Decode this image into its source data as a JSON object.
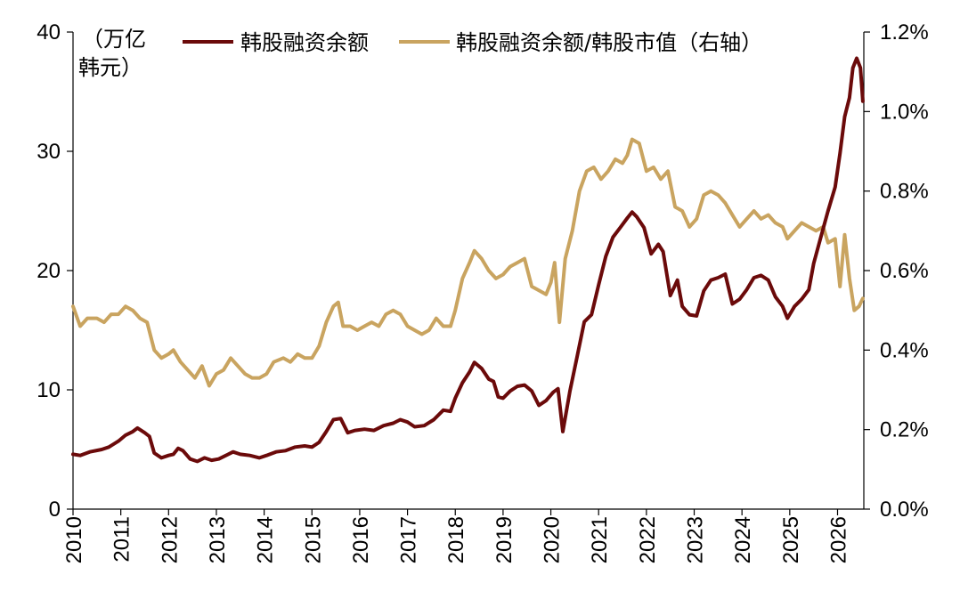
{
  "chart_data": {
    "type": "line",
    "left_unit_line1": "（万亿",
    "left_unit_line2": "韩元）",
    "legend_position": "top",
    "y_left": {
      "min": 0,
      "max": 40,
      "ticks": [
        "0",
        "10",
        "20",
        "30",
        "40"
      ]
    },
    "y_right": {
      "min": 0,
      "max": 1.2,
      "ticks": [
        "0.0%",
        "0.2%",
        "0.4%",
        "0.6%",
        "0.8%",
        "1.0%",
        "1.2%"
      ]
    },
    "x_range": [
      2010,
      2026.55
    ],
    "x_ticks": [
      "2010",
      "2011",
      "2012",
      "2013",
      "2014",
      "2015",
      "2016",
      "2017",
      "2018",
      "2019",
      "2020",
      "2021",
      "2022",
      "2023",
      "2024",
      "2025",
      "2026"
    ],
    "grid": false,
    "series": [
      {
        "name": "韩股融资余额",
        "axis": "left",
        "color": "#6b0a0a",
        "points": [
          [
            2010.0,
            4.6
          ],
          [
            2010.15,
            4.5
          ],
          [
            2010.35,
            4.8
          ],
          [
            2010.6,
            5.0
          ],
          [
            2010.75,
            5.2
          ],
          [
            2010.95,
            5.7
          ],
          [
            2011.1,
            6.2
          ],
          [
            2011.25,
            6.5
          ],
          [
            2011.35,
            6.8
          ],
          [
            2011.5,
            6.4
          ],
          [
            2011.6,
            6.1
          ],
          [
            2011.7,
            4.7
          ],
          [
            2011.85,
            4.3
          ],
          [
            2012.0,
            4.5
          ],
          [
            2012.1,
            4.6
          ],
          [
            2012.2,
            5.1
          ],
          [
            2012.3,
            4.9
          ],
          [
            2012.45,
            4.2
          ],
          [
            2012.6,
            4.0
          ],
          [
            2012.75,
            4.3
          ],
          [
            2012.9,
            4.1
          ],
          [
            2013.05,
            4.2
          ],
          [
            2013.2,
            4.5
          ],
          [
            2013.35,
            4.8
          ],
          [
            2013.5,
            4.6
          ],
          [
            2013.7,
            4.5
          ],
          [
            2013.9,
            4.3
          ],
          [
            2014.05,
            4.5
          ],
          [
            2014.25,
            4.8
          ],
          [
            2014.45,
            4.9
          ],
          [
            2014.65,
            5.2
          ],
          [
            2014.85,
            5.3
          ],
          [
            2015.0,
            5.2
          ],
          [
            2015.15,
            5.6
          ],
          [
            2015.3,
            6.5
          ],
          [
            2015.45,
            7.5
          ],
          [
            2015.6,
            7.6
          ],
          [
            2015.75,
            6.4
          ],
          [
            2015.9,
            6.6
          ],
          [
            2016.1,
            6.7
          ],
          [
            2016.3,
            6.6
          ],
          [
            2016.5,
            7.0
          ],
          [
            2016.7,
            7.2
          ],
          [
            2016.85,
            7.5
          ],
          [
            2017.0,
            7.3
          ],
          [
            2017.15,
            6.9
          ],
          [
            2017.35,
            7.0
          ],
          [
            2017.55,
            7.5
          ],
          [
            2017.75,
            8.3
          ],
          [
            2017.9,
            8.2
          ],
          [
            2018.0,
            9.3
          ],
          [
            2018.15,
            10.6
          ],
          [
            2018.3,
            11.5
          ],
          [
            2018.4,
            12.3
          ],
          [
            2018.55,
            11.8
          ],
          [
            2018.7,
            10.9
          ],
          [
            2018.8,
            10.7
          ],
          [
            2018.9,
            9.4
          ],
          [
            2019.0,
            9.3
          ],
          [
            2019.15,
            9.9
          ],
          [
            2019.3,
            10.3
          ],
          [
            2019.45,
            10.4
          ],
          [
            2019.6,
            9.9
          ],
          [
            2019.75,
            8.7
          ],
          [
            2019.9,
            9.1
          ],
          [
            2020.05,
            9.8
          ],
          [
            2020.15,
            10.1
          ],
          [
            2020.25,
            6.5
          ],
          [
            2020.4,
            9.9
          ],
          [
            2020.55,
            12.8
          ],
          [
            2020.7,
            15.7
          ],
          [
            2020.85,
            16.3
          ],
          [
            2021.0,
            18.8
          ],
          [
            2021.15,
            21.2
          ],
          [
            2021.3,
            22.8
          ],
          [
            2021.45,
            23.6
          ],
          [
            2021.6,
            24.4
          ],
          [
            2021.7,
            24.9
          ],
          [
            2021.8,
            24.5
          ],
          [
            2021.95,
            23.6
          ],
          [
            2022.1,
            21.4
          ],
          [
            2022.25,
            22.2
          ],
          [
            2022.35,
            21.6
          ],
          [
            2022.5,
            17.9
          ],
          [
            2022.65,
            19.2
          ],
          [
            2022.75,
            17.0
          ],
          [
            2022.9,
            16.3
          ],
          [
            2023.05,
            16.2
          ],
          [
            2023.2,
            18.3
          ],
          [
            2023.35,
            19.2
          ],
          [
            2023.5,
            19.4
          ],
          [
            2023.65,
            19.7
          ],
          [
            2023.8,
            17.2
          ],
          [
            2023.95,
            17.6
          ],
          [
            2024.1,
            18.4
          ],
          [
            2024.25,
            19.4
          ],
          [
            2024.4,
            19.6
          ],
          [
            2024.55,
            19.2
          ],
          [
            2024.7,
            17.8
          ],
          [
            2024.85,
            17.0
          ],
          [
            2024.95,
            16.0
          ],
          [
            2025.1,
            17.0
          ],
          [
            2025.25,
            17.6
          ],
          [
            2025.4,
            18.4
          ],
          [
            2025.5,
            20.6
          ],
          [
            2025.65,
            22.8
          ],
          [
            2025.8,
            25.0
          ],
          [
            2025.95,
            27.0
          ],
          [
            2026.05,
            29.8
          ],
          [
            2026.15,
            32.9
          ],
          [
            2026.25,
            34.5
          ],
          [
            2026.32,
            37.0
          ],
          [
            2026.4,
            37.8
          ],
          [
            2026.48,
            37.0
          ],
          [
            2026.53,
            34.2
          ]
        ]
      },
      {
        "name": "韩股融资余额/韩股市值（右轴）",
        "axis": "right",
        "color": "#c9a460",
        "points": [
          [
            2010.0,
            0.51
          ],
          [
            2010.15,
            0.46
          ],
          [
            2010.3,
            0.48
          ],
          [
            2010.5,
            0.48
          ],
          [
            2010.65,
            0.47
          ],
          [
            2010.8,
            0.49
          ],
          [
            2010.95,
            0.49
          ],
          [
            2011.1,
            0.51
          ],
          [
            2011.25,
            0.5
          ],
          [
            2011.4,
            0.48
          ],
          [
            2011.55,
            0.47
          ],
          [
            2011.7,
            0.4
          ],
          [
            2011.85,
            0.38
          ],
          [
            2012.0,
            0.39
          ],
          [
            2012.1,
            0.4
          ],
          [
            2012.25,
            0.37
          ],
          [
            2012.4,
            0.35
          ],
          [
            2012.55,
            0.33
          ],
          [
            2012.7,
            0.36
          ],
          [
            2012.85,
            0.31
          ],
          [
            2013.0,
            0.34
          ],
          [
            2013.15,
            0.35
          ],
          [
            2013.3,
            0.38
          ],
          [
            2013.45,
            0.36
          ],
          [
            2013.6,
            0.34
          ],
          [
            2013.75,
            0.33
          ],
          [
            2013.9,
            0.33
          ],
          [
            2014.05,
            0.34
          ],
          [
            2014.2,
            0.37
          ],
          [
            2014.4,
            0.38
          ],
          [
            2014.55,
            0.37
          ],
          [
            2014.7,
            0.39
          ],
          [
            2014.85,
            0.38
          ],
          [
            2015.0,
            0.38
          ],
          [
            2015.15,
            0.41
          ],
          [
            2015.3,
            0.47
          ],
          [
            2015.45,
            0.51
          ],
          [
            2015.55,
            0.52
          ],
          [
            2015.65,
            0.46
          ],
          [
            2015.8,
            0.46
          ],
          [
            2015.95,
            0.45
          ],
          [
            2016.1,
            0.46
          ],
          [
            2016.25,
            0.47
          ],
          [
            2016.4,
            0.46
          ],
          [
            2016.55,
            0.49
          ],
          [
            2016.7,
            0.5
          ],
          [
            2016.85,
            0.49
          ],
          [
            2017.0,
            0.46
          ],
          [
            2017.15,
            0.45
          ],
          [
            2017.3,
            0.44
          ],
          [
            2017.45,
            0.45
          ],
          [
            2017.6,
            0.48
          ],
          [
            2017.75,
            0.46
          ],
          [
            2017.9,
            0.46
          ],
          [
            2018.0,
            0.5
          ],
          [
            2018.15,
            0.58
          ],
          [
            2018.3,
            0.62
          ],
          [
            2018.4,
            0.65
          ],
          [
            2018.55,
            0.63
          ],
          [
            2018.7,
            0.6
          ],
          [
            2018.85,
            0.58
          ],
          [
            2019.0,
            0.59
          ],
          [
            2019.15,
            0.61
          ],
          [
            2019.3,
            0.62
          ],
          [
            2019.45,
            0.63
          ],
          [
            2019.6,
            0.56
          ],
          [
            2019.75,
            0.55
          ],
          [
            2019.9,
            0.54
          ],
          [
            2020.0,
            0.57
          ],
          [
            2020.08,
            0.62
          ],
          [
            2020.18,
            0.47
          ],
          [
            2020.3,
            0.63
          ],
          [
            2020.45,
            0.7
          ],
          [
            2020.6,
            0.8
          ],
          [
            2020.75,
            0.85
          ],
          [
            2020.9,
            0.86
          ],
          [
            2021.05,
            0.83
          ],
          [
            2021.2,
            0.85
          ],
          [
            2021.35,
            0.88
          ],
          [
            2021.5,
            0.87
          ],
          [
            2021.6,
            0.89
          ],
          [
            2021.7,
            0.93
          ],
          [
            2021.85,
            0.92
          ],
          [
            2022.0,
            0.85
          ],
          [
            2022.15,
            0.86
          ],
          [
            2022.3,
            0.83
          ],
          [
            2022.45,
            0.85
          ],
          [
            2022.6,
            0.76
          ],
          [
            2022.75,
            0.75
          ],
          [
            2022.9,
            0.71
          ],
          [
            2023.05,
            0.73
          ],
          [
            2023.2,
            0.79
          ],
          [
            2023.35,
            0.8
          ],
          [
            2023.5,
            0.79
          ],
          [
            2023.65,
            0.77
          ],
          [
            2023.8,
            0.74
          ],
          [
            2023.95,
            0.71
          ],
          [
            2024.1,
            0.73
          ],
          [
            2024.25,
            0.75
          ],
          [
            2024.4,
            0.73
          ],
          [
            2024.55,
            0.74
          ],
          [
            2024.7,
            0.72
          ],
          [
            2024.85,
            0.71
          ],
          [
            2024.95,
            0.68
          ],
          [
            2025.1,
            0.7
          ],
          [
            2025.25,
            0.72
          ],
          [
            2025.4,
            0.71
          ],
          [
            2025.55,
            0.7
          ],
          [
            2025.7,
            0.71
          ],
          [
            2025.8,
            0.67
          ],
          [
            2025.95,
            0.68
          ],
          [
            2026.05,
            0.56
          ],
          [
            2026.15,
            0.69
          ],
          [
            2026.25,
            0.58
          ],
          [
            2026.35,
            0.5
          ],
          [
            2026.45,
            0.51
          ],
          [
            2026.53,
            0.53
          ]
        ]
      }
    ]
  }
}
